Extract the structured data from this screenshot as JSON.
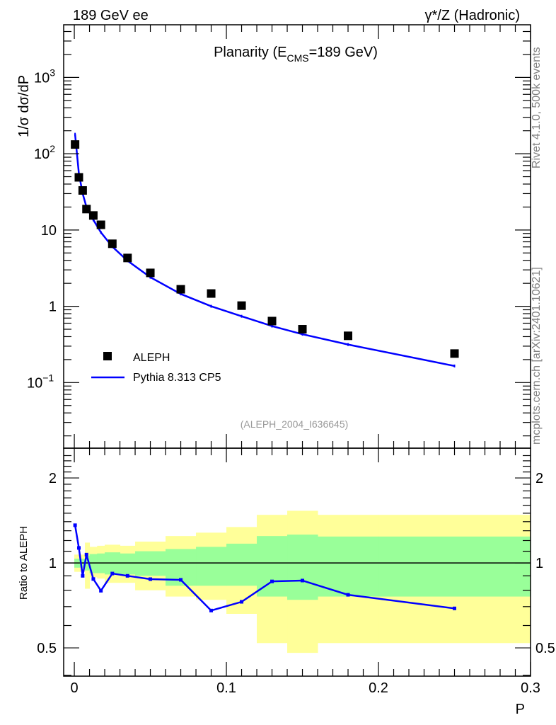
{
  "header": {
    "left": "189 GeV ee",
    "right": "γ*/Z (Hadronic)"
  },
  "side": {
    "rivet": "Rivet 4.1.0,  500k events",
    "mcplots": "mcplots.cern.ch [arXiv:2401.10621]"
  },
  "colors": {
    "data": "#000000",
    "mc": "#0000ff",
    "band_inner": "#99ff99",
    "band_outer": "#ffff99"
  },
  "chart_data": [
    {
      "type": "scatter",
      "title": "Planarity (E",
      "title_sub": "CMS",
      "title_end": "=189 GeV)",
      "ylabel": "1/σ  dσ/dP",
      "xlabel": "",
      "yscale": "log",
      "xlim": [
        -0.007,
        0.3
      ],
      "ylim": [
        0.0138,
        4900
      ],
      "yticks": [
        {
          "v": 1000,
          "label": "10",
          "sup": "3"
        },
        {
          "v": 100,
          "label": "10",
          "sup": "2"
        },
        {
          "v": 10,
          "label": "10",
          "sup": ""
        },
        {
          "v": 1,
          "label": "1",
          "sup": ""
        },
        {
          "v": 0.1,
          "label": "10",
          "sup": "−1"
        }
      ],
      "annotation": "(ALEPH_2004_I636645)",
      "legend": {
        "placement": "bottom-left",
        "entries": [
          "ALEPH",
          "Pythia 8.313 CP5"
        ]
      },
      "x": [
        0.0005,
        0.003,
        0.0055,
        0.008,
        0.0125,
        0.0175,
        0.025,
        0.035,
        0.05,
        0.07,
        0.09,
        0.11,
        0.13,
        0.15,
        0.18,
        0.25
      ],
      "series": [
        {
          "name": "ALEPH",
          "values": [
            132,
            49,
            33,
            18.8,
            15.5,
            11.7,
            6.6,
            4.3,
            2.74,
            1.67,
            1.47,
            1.02,
            0.64,
            0.5,
            0.41,
            0.24
          ]
        },
        {
          "name": "Pythia 8.313 CP5",
          "values": [
            180,
            55,
            30,
            20,
            13.6,
            9.3,
            6.05,
            3.95,
            2.4,
            1.45,
            1.0,
            0.74,
            0.55,
            0.43,
            0.315,
            0.165
          ]
        }
      ]
    },
    {
      "type": "line",
      "ylabel": "Ratio to ALEPH",
      "xlabel": "P",
      "yscale": "log",
      "xlim": [
        -0.007,
        0.3
      ],
      "ylim": [
        0.397,
        2.55
      ],
      "xticks": [
        {
          "v": 0,
          "label": "0"
        },
        {
          "v": 0.1,
          "label": "0.1"
        },
        {
          "v": 0.2,
          "label": "0.2"
        },
        {
          "v": 0.3,
          "label": "0.3"
        }
      ],
      "yticks": [
        {
          "v": 2,
          "label": "2"
        },
        {
          "v": 1,
          "label": "1"
        },
        {
          "v": 0.5,
          "label": "0.5"
        }
      ],
      "bin_edges": [
        0,
        0.002,
        0.004,
        0.007,
        0.01,
        0.015,
        0.02,
        0.03,
        0.04,
        0.06,
        0.08,
        0.1,
        0.12,
        0.14,
        0.16,
        0.2,
        0.3
      ],
      "band_outer": {
        "upper": [
          1.07,
          1.07,
          1.07,
          1.18,
          1.14,
          1.15,
          1.16,
          1.15,
          1.19,
          1.245,
          1.28,
          1.34,
          1.48,
          1.53,
          1.48,
          1.48
        ],
        "lower": [
          0.93,
          0.93,
          0.93,
          0.81,
          0.89,
          0.88,
          0.85,
          0.85,
          0.8,
          0.76,
          0.74,
          0.66,
          0.52,
          0.48,
          0.52,
          0.52
        ]
      },
      "band_inner": {
        "upper": [
          1.035,
          1.035,
          1.035,
          1.06,
          1.075,
          1.08,
          1.09,
          1.08,
          1.1,
          1.12,
          1.14,
          1.17,
          1.245,
          1.26,
          1.24,
          1.24
        ],
        "lower": [
          0.962,
          0.962,
          0.962,
          0.94,
          0.92,
          0.92,
          0.91,
          0.91,
          0.9,
          0.83,
          0.83,
          0.83,
          0.76,
          0.74,
          0.76,
          0.76
        ]
      },
      "x": [
        0.0005,
        0.003,
        0.0055,
        0.008,
        0.0125,
        0.0175,
        0.025,
        0.035,
        0.05,
        0.07,
        0.09,
        0.11,
        0.13,
        0.15,
        0.18,
        0.25
      ],
      "series": [
        {
          "name": "Pythia 8.313 CP5 / ALEPH",
          "values": [
            1.36,
            1.13,
            0.9,
            1.07,
            0.877,
            0.797,
            0.917,
            0.9,
            0.876,
            0.871,
            0.678,
            0.728,
            0.86,
            0.866,
            0.771,
            0.69
          ]
        }
      ]
    }
  ]
}
